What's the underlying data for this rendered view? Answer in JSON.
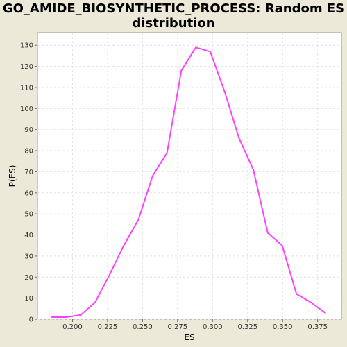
{
  "chart_data": {
    "type": "line",
    "title_line1": "GO_AMIDE_BIOSYNTHETIC_PROCESS: Random ES",
    "title_line2": "distribution",
    "xlabel": "ES",
    "ylabel": "P(ES)",
    "xlim": [
      0.175,
      0.392
    ],
    "ylim": [
      0,
      136
    ],
    "x_ticks": [
      "0.200",
      "0.225",
      "0.250",
      "0.275",
      "0.300",
      "0.325",
      "0.350",
      "0.375"
    ],
    "y_ticks": [
      "0",
      "10",
      "20",
      "30",
      "40",
      "50",
      "60",
      "70",
      "80",
      "90",
      "100",
      "110",
      "120",
      "130"
    ],
    "grid": true,
    "series": [
      {
        "color": "#ff40ff",
        "x": [
          0.1853,
          0.1955,
          0.2058,
          0.2161,
          0.2264,
          0.2366,
          0.2469,
          0.2572,
          0.2675,
          0.2777,
          0.288,
          0.2983,
          0.3086,
          0.3188,
          0.3291,
          0.3394,
          0.3497,
          0.3599,
          0.3702,
          0.3805
        ],
        "y": [
          1,
          1,
          2,
          8,
          21,
          35,
          47,
          68,
          79,
          118,
          129,
          127,
          108,
          86,
          71,
          41,
          35,
          12,
          8,
          3
        ]
      }
    ]
  }
}
